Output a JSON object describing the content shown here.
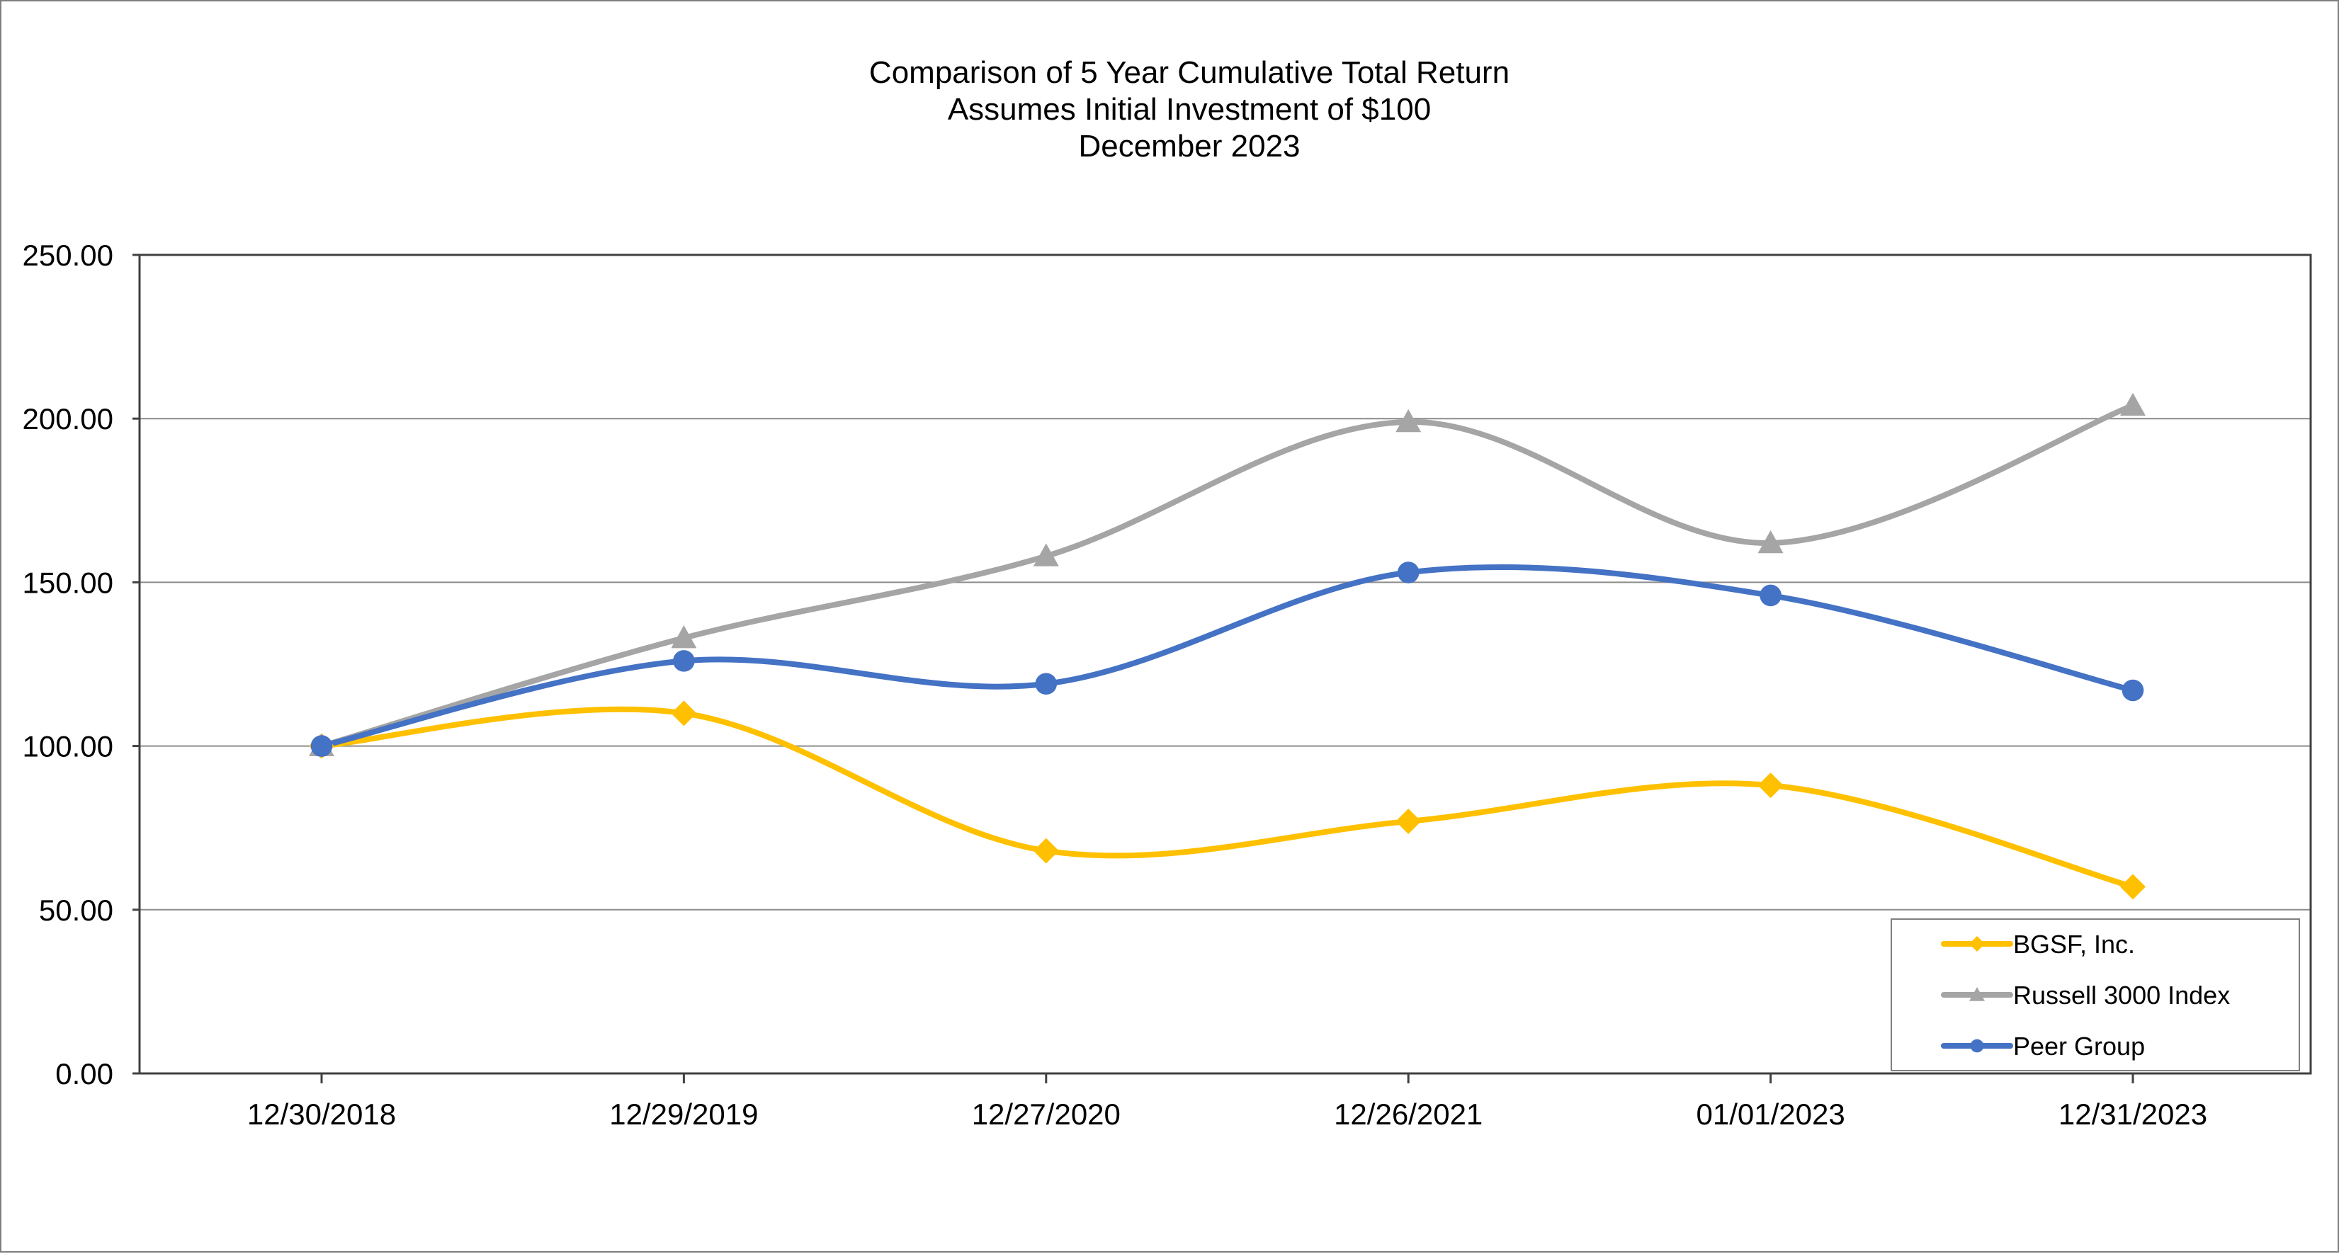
{
  "chart_data": {
    "type": "line",
    "title_lines": [
      "Comparison of 5 Year Cumulative Total Return",
      "Assumes Initial Investment of $100",
      "December 2023"
    ],
    "xlabel": "",
    "ylabel": "",
    "categories": [
      "12/30/2018",
      "12/29/2019",
      "12/27/2020",
      "12/26/2021",
      "01/01/2023",
      "12/31/2023"
    ],
    "ylim": [
      0,
      250
    ],
    "y_ticks": [
      "0.00",
      "50.00",
      "100.00",
      "150.00",
      "200.00",
      "250.00"
    ],
    "grid": true,
    "legend_position": "bottom-right",
    "series": [
      {
        "name": "BGSF, Inc.",
        "color": "#FFC000",
        "marker": "diamond",
        "values": [
          100,
          110,
          68,
          77,
          88,
          57
        ]
      },
      {
        "name": "Russell 3000 Index",
        "color": "#A5A5A5",
        "marker": "triangle",
        "values": [
          100,
          133,
          158,
          199,
          162,
          204
        ]
      },
      {
        "name": "Peer Group",
        "color": "#4472C4",
        "marker": "circle",
        "values": [
          100,
          126,
          119,
          153,
          146,
          117
        ]
      }
    ]
  }
}
